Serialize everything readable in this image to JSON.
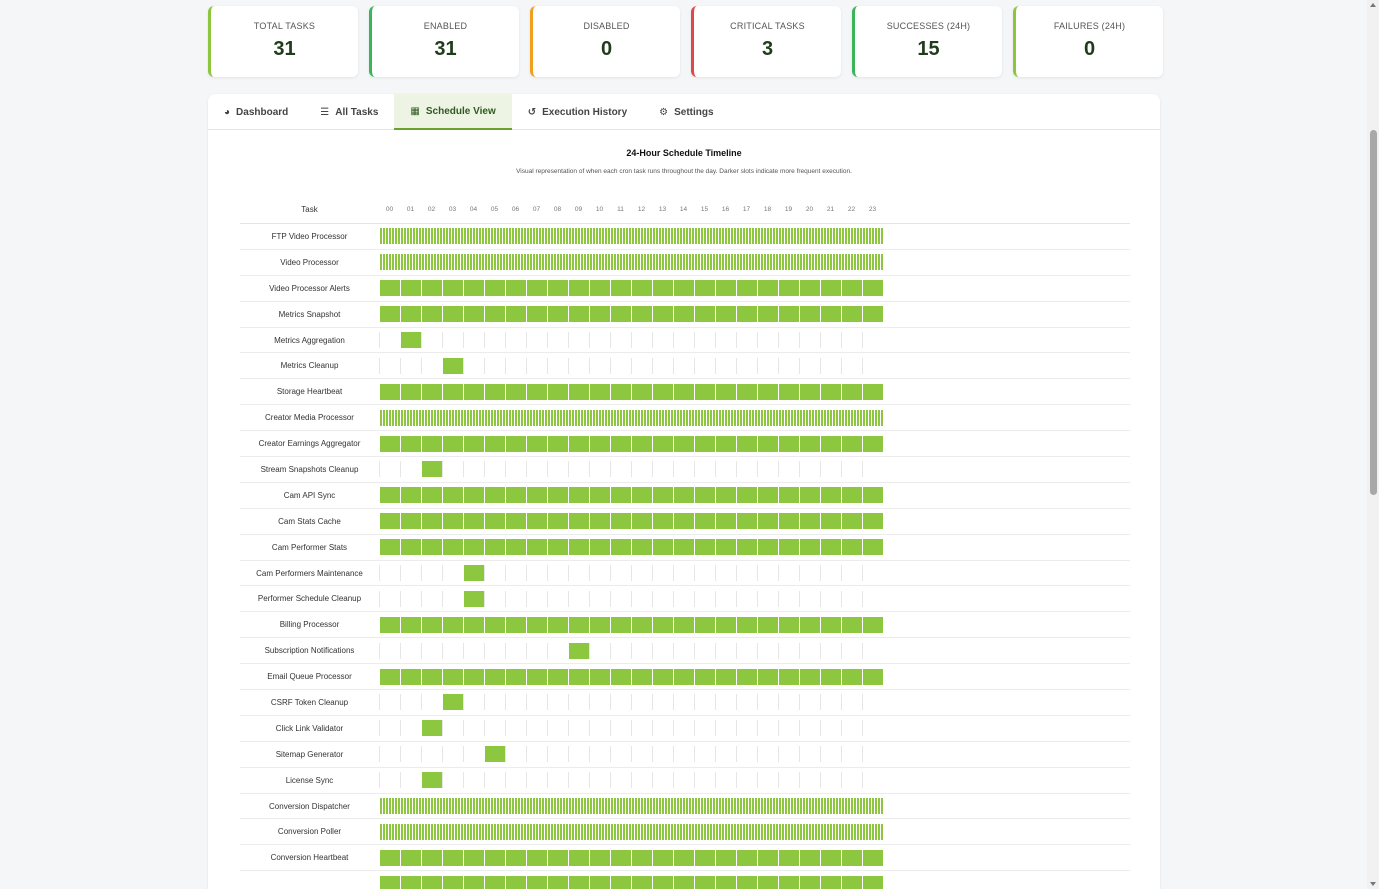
{
  "stats": [
    {
      "label": "TOTAL TASKS",
      "value": "31",
      "color": "#8cc63f"
    },
    {
      "label": "ENABLED",
      "value": "31",
      "color": "#3cb55a"
    },
    {
      "label": "DISABLED",
      "value": "0",
      "color": "#f0a020"
    },
    {
      "label": "CRITICAL TASKS",
      "value": "3",
      "color": "#e04848"
    },
    {
      "label": "SUCCESSES (24H)",
      "value": "15",
      "color": "#3cb55a"
    },
    {
      "label": "FAILURES (24H)",
      "value": "0",
      "color": "#8cc63f"
    }
  ],
  "tabs": [
    {
      "label": "Dashboard",
      "icon": "dashboard-icon",
      "glyph": "◕",
      "active": false
    },
    {
      "label": "All Tasks",
      "icon": "list-icon",
      "glyph": "☰",
      "active": false
    },
    {
      "label": "Schedule View",
      "icon": "calendar-icon",
      "glyph": "▦",
      "active": true
    },
    {
      "label": "Execution History",
      "icon": "history-icon",
      "glyph": "↺",
      "active": false
    },
    {
      "label": "Settings",
      "icon": "gear-icon",
      "glyph": "⚙",
      "active": false
    }
  ],
  "timeline": {
    "title": "24-Hour Schedule Timeline",
    "description": "Visual representation of when each cron task runs throughout the day. Darker slots indicate more frequent execution.",
    "task_header": "Task",
    "hours": [
      "00",
      "01",
      "02",
      "03",
      "04",
      "05",
      "06",
      "07",
      "08",
      "09",
      "10",
      "11",
      "12",
      "13",
      "14",
      "15",
      "16",
      "17",
      "18",
      "19",
      "20",
      "21",
      "22",
      "23"
    ],
    "colors": {
      "slot": "#8dc63f"
    },
    "tasks": [
      {
        "name": "FTP Video Processor",
        "pattern": "dense"
      },
      {
        "name": "Video Processor",
        "pattern": "dense"
      },
      {
        "name": "Video Processor Alerts",
        "pattern": "hourly"
      },
      {
        "name": "Metrics Snapshot",
        "pattern": "hourly"
      },
      {
        "name": "Metrics Aggregation",
        "pattern": "single",
        "hour": 1
      },
      {
        "name": "Metrics Cleanup",
        "pattern": "single",
        "hour": 3
      },
      {
        "name": "Storage Heartbeat",
        "pattern": "hourly"
      },
      {
        "name": "Creator Media Processor",
        "pattern": "dense"
      },
      {
        "name": "Creator Earnings Aggregator",
        "pattern": "hourly"
      },
      {
        "name": "Stream Snapshots Cleanup",
        "pattern": "single",
        "hour": 2
      },
      {
        "name": "Cam API Sync",
        "pattern": "hourly"
      },
      {
        "name": "Cam Stats Cache",
        "pattern": "hourly"
      },
      {
        "name": "Cam Performer Stats",
        "pattern": "hourly"
      },
      {
        "name": "Cam Performers Maintenance",
        "pattern": "single",
        "hour": 4
      },
      {
        "name": "Performer Schedule Cleanup",
        "pattern": "single",
        "hour": 4
      },
      {
        "name": "Billing Processor",
        "pattern": "hourly"
      },
      {
        "name": "Subscription Notifications",
        "pattern": "single",
        "hour": 9
      },
      {
        "name": "Email Queue Processor",
        "pattern": "hourly"
      },
      {
        "name": "CSRF Token Cleanup",
        "pattern": "single",
        "hour": 3
      },
      {
        "name": "Click Link Validator",
        "pattern": "single",
        "hour": 2
      },
      {
        "name": "Sitemap Generator",
        "pattern": "single",
        "hour": 5
      },
      {
        "name": "License Sync",
        "pattern": "single",
        "hour": 2
      },
      {
        "name": "Conversion Dispatcher",
        "pattern": "dense"
      },
      {
        "name": "Conversion Poller",
        "pattern": "dense"
      },
      {
        "name": "Conversion Heartbeat",
        "pattern": "hourly"
      },
      {
        "name": "",
        "pattern": "hourly"
      }
    ]
  }
}
